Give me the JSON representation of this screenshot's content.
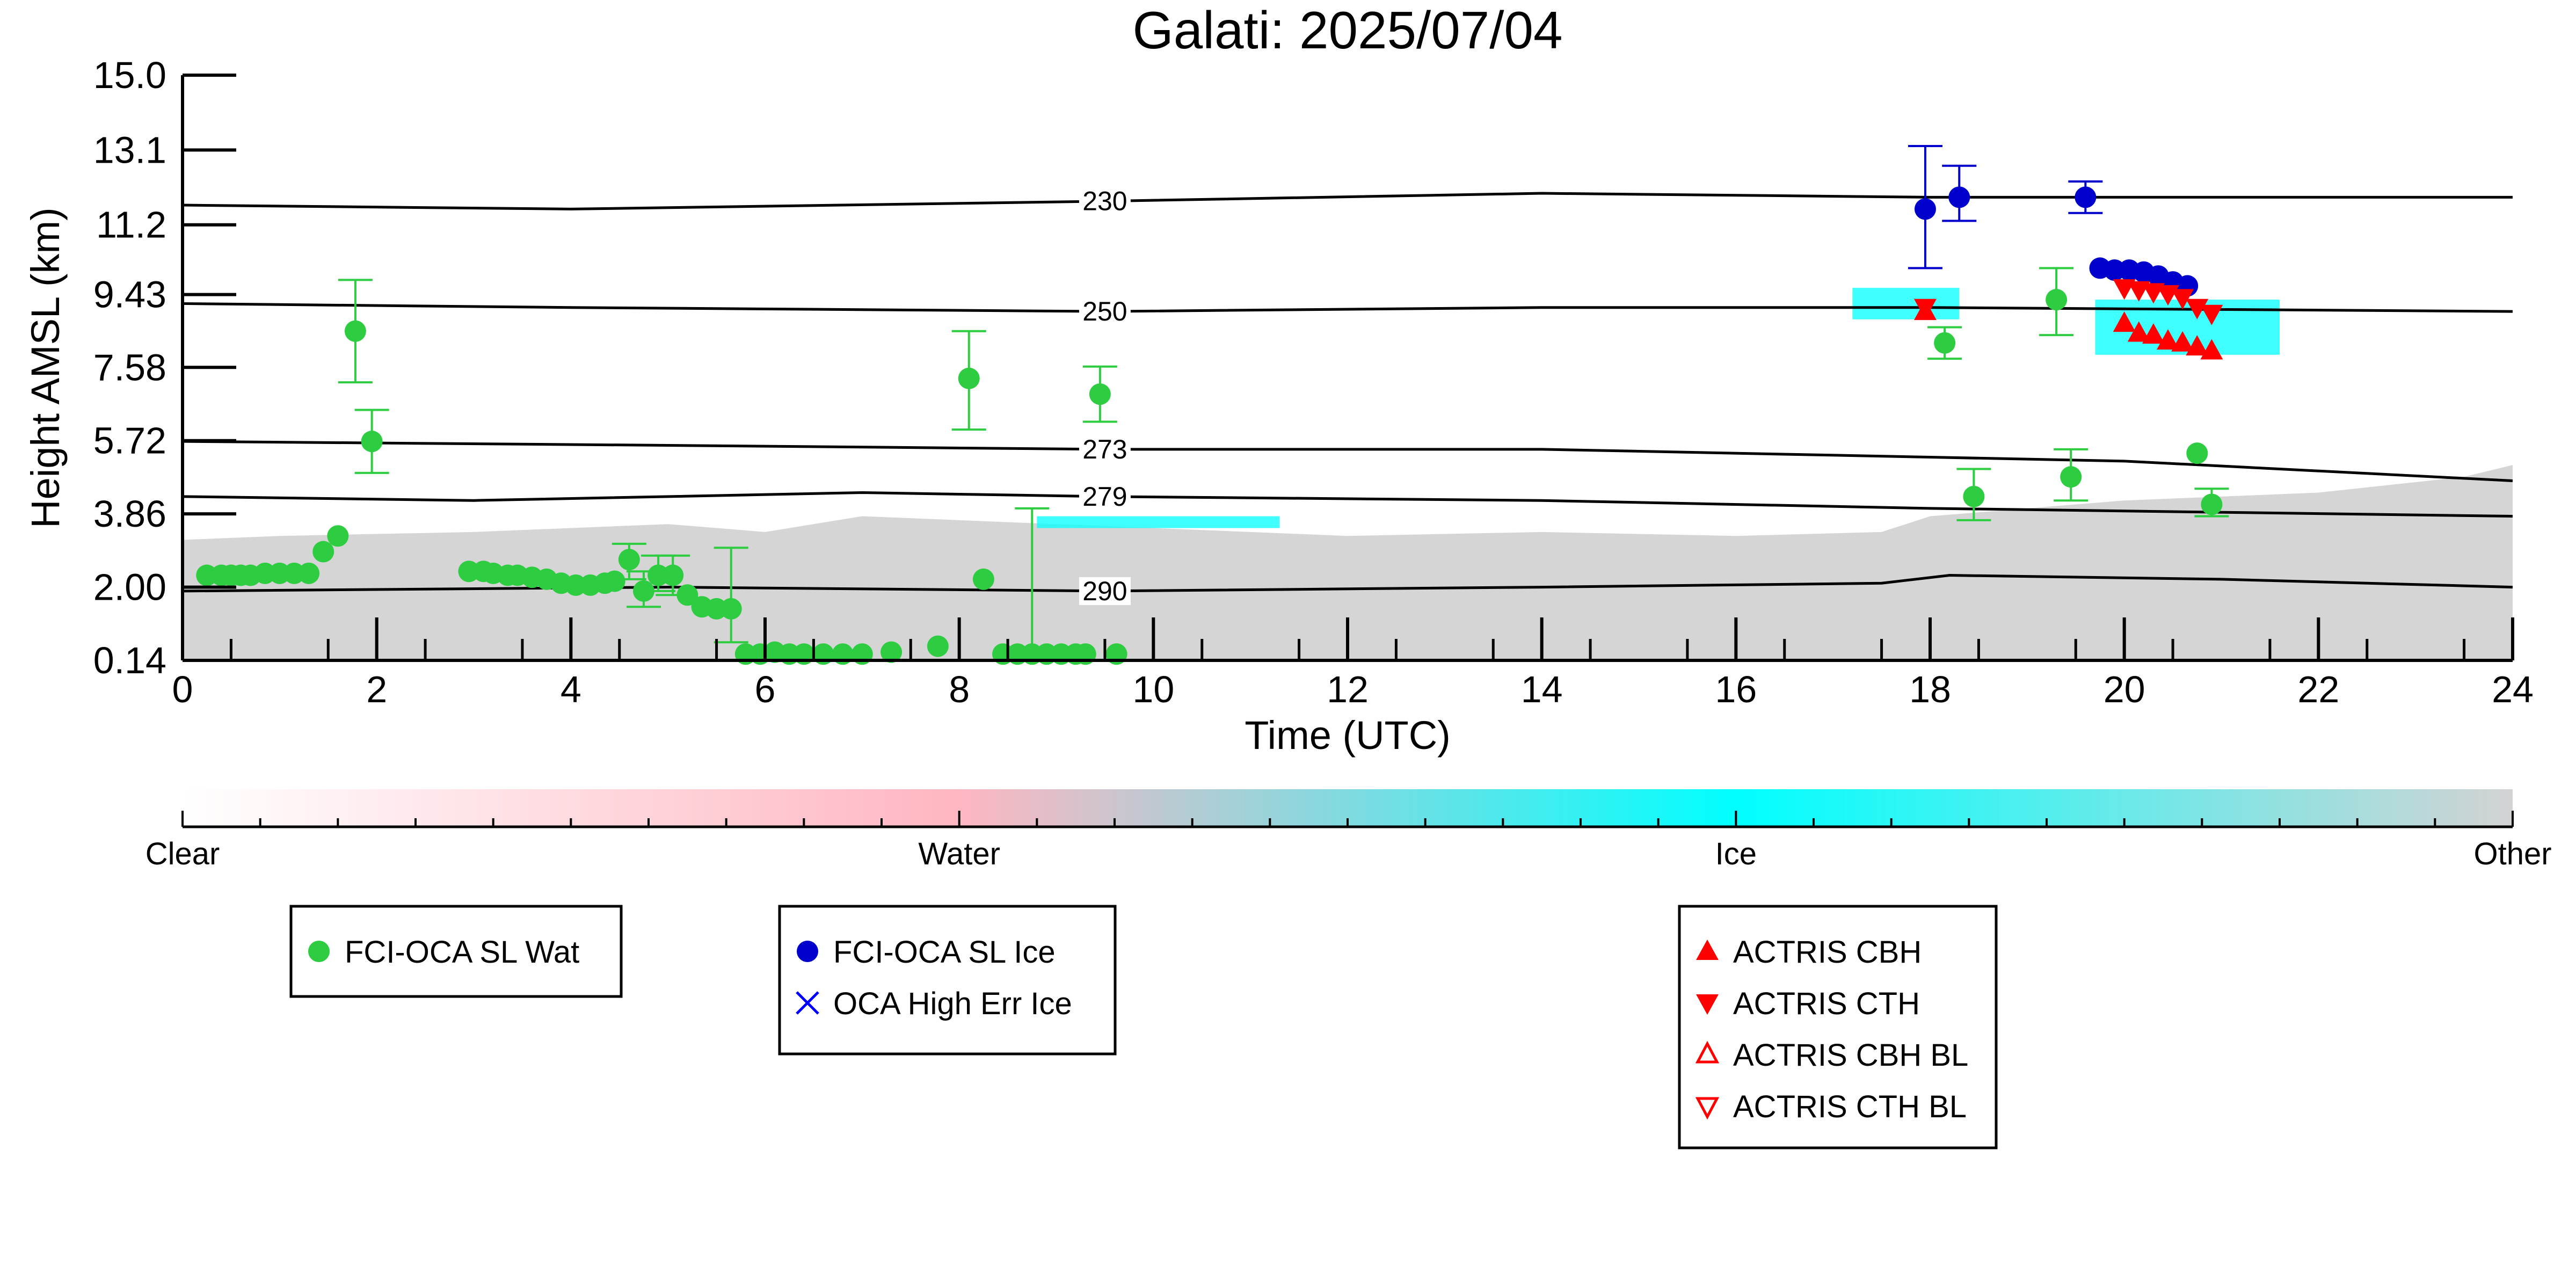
{
  "chart_data": {
    "type": "scatter",
    "title": "Galati: 2025/07/04",
    "xlabel": "Time (UTC)",
    "ylabel": "Height AMSL (km)",
    "xlim": [
      0,
      24
    ],
    "ylim": [
      0.14,
      15.0
    ],
    "x_ticks": [
      "0",
      "2",
      "4",
      "6",
      "8",
      "10",
      "12",
      "14",
      "16",
      "18",
      "20",
      "22",
      "24"
    ],
    "y_ticks": [
      {
        "value": 0.14,
        "label": "0.14"
      },
      {
        "value": 2.0,
        "label": "2.00"
      },
      {
        "value": 3.86,
        "label": "3.86"
      },
      {
        "value": 5.72,
        "label": "5.72"
      },
      {
        "value": 7.58,
        "label": "7.58"
      },
      {
        "value": 9.43,
        "label": "9.43"
      },
      {
        "value": 11.2,
        "label": "11.2"
      },
      {
        "value": 13.1,
        "label": "13.1"
      },
      {
        "value": 15.0,
        "label": "15.0"
      }
    ],
    "grid": false,
    "background_classification": {
      "description_colors": {
        "other": "#d3d3d3",
        "ice": "#00ffff",
        "water": "#ffb6c1"
      },
      "other_top_profile": [
        [
          0.0,
          3.2
        ],
        [
          1.0,
          3.3
        ],
        [
          3.0,
          3.4
        ],
        [
          5.0,
          3.6
        ],
        [
          6.0,
          3.4
        ],
        [
          7.0,
          3.8
        ],
        [
          9.0,
          3.6
        ],
        [
          10.0,
          3.5
        ],
        [
          12.0,
          3.3
        ],
        [
          14.0,
          3.4
        ],
        [
          16.0,
          3.3
        ],
        [
          17.5,
          3.4
        ],
        [
          18.0,
          3.8
        ],
        [
          20.0,
          4.2
        ],
        [
          22.0,
          4.4
        ],
        [
          23.5,
          4.8
        ],
        [
          24.0,
          5.1
        ]
      ],
      "ice_patches": [
        {
          "x0": 17.2,
          "x1": 18.3,
          "y0": 8.8,
          "y1": 9.6
        },
        {
          "x0": 19.7,
          "x1": 21.6,
          "y0": 7.9,
          "y1": 9.3
        },
        {
          "x0": 8.8,
          "x1": 11.3,
          "y0": 3.5,
          "y1": 3.8
        }
      ]
    },
    "isotherms": [
      {
        "label": "230",
        "label_x": 9.5,
        "points": [
          [
            0,
            11.7
          ],
          [
            4,
            11.6
          ],
          [
            9.5,
            11.8
          ],
          [
            14,
            12.0
          ],
          [
            18,
            11.9
          ],
          [
            24,
            11.9
          ]
        ]
      },
      {
        "label": "250",
        "label_x": 9.5,
        "points": [
          [
            0,
            9.2
          ],
          [
            4,
            9.1
          ],
          [
            9.5,
            9.0
          ],
          [
            14,
            9.1
          ],
          [
            18,
            9.1
          ],
          [
            24,
            9.0
          ]
        ]
      },
      {
        "label": "273",
        "label_x": 9.5,
        "points": [
          [
            0,
            5.7
          ],
          [
            5,
            5.6
          ],
          [
            9.5,
            5.5
          ],
          [
            14,
            5.5
          ],
          [
            18,
            5.3
          ],
          [
            20,
            5.2
          ],
          [
            24,
            4.7
          ]
        ]
      },
      {
        "label": "279",
        "label_x": 9.5,
        "points": [
          [
            0,
            4.3
          ],
          [
            3,
            4.2
          ],
          [
            7,
            4.4
          ],
          [
            9.5,
            4.3
          ],
          [
            14,
            4.2
          ],
          [
            18,
            4.0
          ],
          [
            24,
            3.8
          ]
        ]
      },
      {
        "label": "290",
        "label_x": 9.5,
        "points": [
          [
            0,
            1.9
          ],
          [
            5,
            2.0
          ],
          [
            9.5,
            1.9
          ],
          [
            14,
            2.0
          ],
          [
            17.5,
            2.1
          ],
          [
            18.2,
            2.3
          ],
          [
            21,
            2.2
          ],
          [
            24,
            2.0
          ]
        ]
      }
    ],
    "series": [
      {
        "name": "FCI-OCA SL Wat",
        "color": "#2ecc40",
        "marker": "circle",
        "points": [
          {
            "x": 0.25,
            "y": 2.3
          },
          {
            "x": 0.4,
            "y": 2.3
          },
          {
            "x": 0.5,
            "y": 2.3
          },
          {
            "x": 0.6,
            "y": 2.3
          },
          {
            "x": 0.7,
            "y": 2.3
          },
          {
            "x": 0.85,
            "y": 2.35
          },
          {
            "x": 1.0,
            "y": 2.35
          },
          {
            "x": 1.15,
            "y": 2.35
          },
          {
            "x": 1.3,
            "y": 2.35
          },
          {
            "x": 1.45,
            "y": 2.9
          },
          {
            "x": 1.6,
            "y": 3.3
          },
          {
            "x": 1.78,
            "y": 8.5,
            "lo": 7.2,
            "hi": 9.8
          },
          {
            "x": 1.95,
            "y": 5.7,
            "lo": 4.9,
            "hi": 6.5
          },
          {
            "x": 2.95,
            "y": 2.4
          },
          {
            "x": 3.1,
            "y": 2.4
          },
          {
            "x": 3.2,
            "y": 2.35
          },
          {
            "x": 3.35,
            "y": 2.3
          },
          {
            "x": 3.45,
            "y": 2.3
          },
          {
            "x": 3.6,
            "y": 2.25
          },
          {
            "x": 3.75,
            "y": 2.2
          },
          {
            "x": 3.9,
            "y": 2.1
          },
          {
            "x": 4.05,
            "y": 2.05
          },
          {
            "x": 4.2,
            "y": 2.05
          },
          {
            "x": 4.35,
            "y": 2.1
          },
          {
            "x": 4.45,
            "y": 2.15
          },
          {
            "x": 4.6,
            "y": 2.7,
            "lo": 2.2,
            "hi": 3.1
          },
          {
            "x": 4.75,
            "y": 1.9,
            "lo": 1.5,
            "hi": 2.4
          },
          {
            "x": 4.9,
            "y": 2.3,
            "lo": 1.9,
            "hi": 2.8
          },
          {
            "x": 5.05,
            "y": 2.3,
            "lo": 1.8,
            "hi": 2.8
          },
          {
            "x": 5.2,
            "y": 1.8
          },
          {
            "x": 5.35,
            "y": 1.5
          },
          {
            "x": 5.5,
            "y": 1.45
          },
          {
            "x": 5.65,
            "y": 1.45,
            "lo": 0.6,
            "hi": 3.0
          },
          {
            "x": 5.8,
            "y": 0.3
          },
          {
            "x": 5.95,
            "y": 0.3
          },
          {
            "x": 6.1,
            "y": 0.35
          },
          {
            "x": 6.25,
            "y": 0.3
          },
          {
            "x": 6.4,
            "y": 0.3
          },
          {
            "x": 6.6,
            "y": 0.3
          },
          {
            "x": 6.8,
            "y": 0.3
          },
          {
            "x": 7.0,
            "y": 0.3
          },
          {
            "x": 7.3,
            "y": 0.35
          },
          {
            "x": 7.78,
            "y": 0.5
          },
          {
            "x": 8.1,
            "y": 7.3,
            "lo": 6.0,
            "hi": 8.5
          },
          {
            "x": 8.25,
            "y": 2.2
          },
          {
            "x": 8.45,
            "y": 0.3
          },
          {
            "x": 8.6,
            "y": 0.3
          },
          {
            "x": 8.75,
            "y": 0.3,
            "lo": 0.14,
            "hi": 4.0
          },
          {
            "x": 8.9,
            "y": 0.3
          },
          {
            "x": 9.05,
            "y": 0.3
          },
          {
            "x": 9.2,
            "y": 0.3
          },
          {
            "x": 9.3,
            "y": 0.3
          },
          {
            "x": 9.45,
            "y": 6.9,
            "lo": 6.2,
            "hi": 7.6
          },
          {
            "x": 9.62,
            "y": 0.3
          },
          {
            "x": 18.15,
            "y": 8.2,
            "lo": 7.8,
            "hi": 8.6
          },
          {
            "x": 18.45,
            "y": 4.3,
            "lo": 3.7,
            "hi": 5.0
          },
          {
            "x": 19.3,
            "y": 9.3,
            "lo": 8.4,
            "hi": 10.1
          },
          {
            "x": 19.45,
            "y": 4.8,
            "lo": 4.2,
            "hi": 5.5
          },
          {
            "x": 20.75,
            "y": 5.4
          },
          {
            "x": 20.9,
            "y": 4.1,
            "lo": 3.8,
            "hi": 4.5
          }
        ]
      },
      {
        "name": "FCI-OCA SL Ice",
        "color": "#0000cc",
        "marker": "circle",
        "points": [
          {
            "x": 17.95,
            "y": 11.6,
            "lo": 10.1,
            "hi": 13.2
          },
          {
            "x": 18.3,
            "y": 11.9,
            "lo": 11.3,
            "hi": 12.7
          },
          {
            "x": 19.6,
            "y": 11.9,
            "lo": 11.5,
            "hi": 12.3
          },
          {
            "x": 19.75,
            "y": 10.1
          },
          {
            "x": 19.9,
            "y": 10.05
          },
          {
            "x": 20.05,
            "y": 10.05
          },
          {
            "x": 20.2,
            "y": 10.0
          },
          {
            "x": 20.35,
            "y": 9.9
          },
          {
            "x": 20.5,
            "y": 9.75
          },
          {
            "x": 20.65,
            "y": 9.65
          }
        ]
      },
      {
        "name": "OCA High Err Ice",
        "color": "#0000ff",
        "marker": "x",
        "points": []
      },
      {
        "name": "ACTRIS CBH",
        "color": "#ff0000",
        "marker": "triangle-up",
        "points": [
          {
            "x": 17.95,
            "y": 9.0
          },
          {
            "x": 20.0,
            "y": 8.7
          },
          {
            "x": 20.15,
            "y": 8.45
          },
          {
            "x": 20.3,
            "y": 8.4
          },
          {
            "x": 20.45,
            "y": 8.25
          },
          {
            "x": 20.6,
            "y": 8.2
          },
          {
            "x": 20.75,
            "y": 8.1
          },
          {
            "x": 20.9,
            "y": 8.0
          }
        ]
      },
      {
        "name": "ACTRIS CTH",
        "color": "#ff0000",
        "marker": "triangle-down",
        "points": [
          {
            "x": 17.95,
            "y": 9.1
          },
          {
            "x": 20.0,
            "y": 9.6
          },
          {
            "x": 20.15,
            "y": 9.55
          },
          {
            "x": 20.3,
            "y": 9.5
          },
          {
            "x": 20.45,
            "y": 9.45
          },
          {
            "x": 20.6,
            "y": 9.35
          },
          {
            "x": 20.75,
            "y": 9.1
          },
          {
            "x": 20.9,
            "y": 8.95
          }
        ]
      },
      {
        "name": "ACTRIS CBH BL",
        "color": "#ff0000",
        "marker": "triangle-up-open",
        "points": []
      },
      {
        "name": "ACTRIS CTH BL",
        "color": "#ff0000",
        "marker": "triangle-down-open",
        "points": []
      }
    ],
    "colorbar": {
      "labels": [
        "Clear",
        "Water",
        "Ice",
        "Other"
      ],
      "colors": [
        "#ffffff",
        "#ffb6c1",
        "#00ffff",
        "#d3d3d3"
      ]
    },
    "legends": [
      {
        "entries": [
          "FCI-OCA SL Wat"
        ]
      },
      {
        "entries": [
          "FCI-OCA SL Ice",
          "OCA High Err Ice"
        ]
      },
      {
        "entries": [
          "ACTRIS CBH",
          "ACTRIS CTH",
          "ACTRIS CBH BL",
          "ACTRIS CTH BL"
        ]
      }
    ]
  }
}
